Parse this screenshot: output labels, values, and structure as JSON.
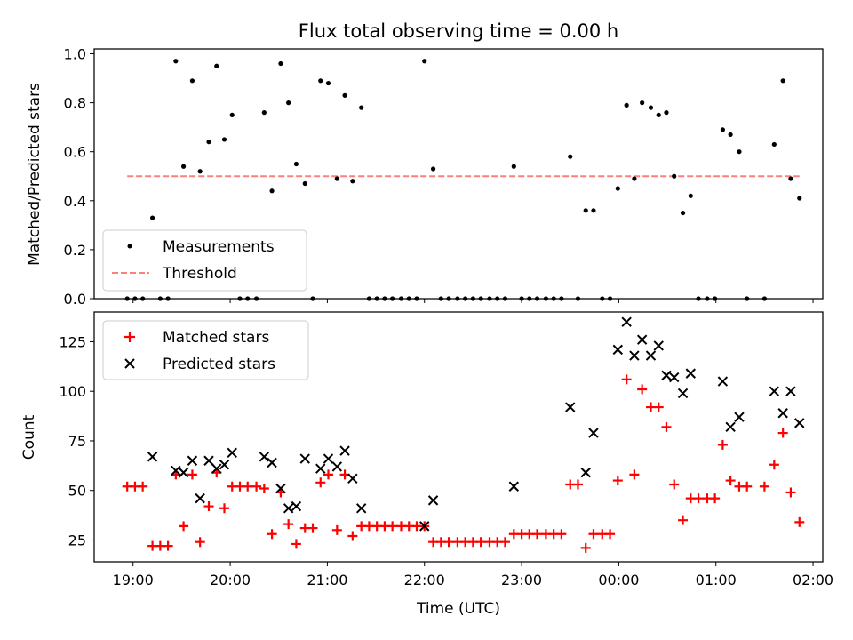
{
  "chart_data": [
    {
      "type": "scatter",
      "title": "Flux total observing time = 0.00 h",
      "xlabel": "",
      "ylabel": "Matched/Predicted stars",
      "x_unit": "hours since 19:00 UTC",
      "xlim": [
        -0.4,
        7.1
      ],
      "ylim": [
        0,
        1.02
      ],
      "yticks": [
        0.0,
        0.2,
        0.4,
        0.6,
        0.8,
        1.0
      ],
      "ytick_labels": [
        "0.0",
        "0.2",
        "0.4",
        "0.6",
        "0.8",
        "1.0"
      ],
      "legend_position": "lower-left",
      "series": [
        {
          "name": "Measurements",
          "color": "#000000",
          "marker": "dot",
          "points": [
            [
              -0.06,
              0
            ],
            [
              0.02,
              0
            ],
            [
              0.1,
              0
            ],
            [
              0.2,
              0.33
            ],
            [
              0.28,
              0
            ],
            [
              0.36,
              0
            ],
            [
              0.44,
              0.97
            ],
            [
              0.52,
              0.54
            ],
            [
              0.61,
              0.89
            ],
            [
              0.69,
              0.52
            ],
            [
              0.78,
              0.64
            ],
            [
              0.86,
              0.95
            ],
            [
              0.94,
              0.65
            ],
            [
              1.02,
              0.75
            ],
            [
              1.1,
              0
            ],
            [
              1.18,
              0
            ],
            [
              1.27,
              0
            ],
            [
              1.35,
              0.76
            ],
            [
              1.43,
              0.44
            ],
            [
              1.52,
              0.96
            ],
            [
              1.6,
              0.8
            ],
            [
              1.68,
              0.55
            ],
            [
              1.77,
              0.47
            ],
            [
              1.85,
              0
            ],
            [
              1.93,
              0.89
            ],
            [
              2.01,
              0.88
            ],
            [
              2.1,
              0.49
            ],
            [
              2.18,
              0.83
            ],
            [
              2.26,
              0.48
            ],
            [
              2.35,
              0.78
            ],
            [
              2.43,
              0
            ],
            [
              2.51,
              0
            ],
            [
              2.59,
              0
            ],
            [
              2.67,
              0
            ],
            [
              2.76,
              0
            ],
            [
              2.84,
              0
            ],
            [
              2.92,
              0
            ],
            [
              3.0,
              0.97
            ],
            [
              3.09,
              0.53
            ],
            [
              3.17,
              0
            ],
            [
              3.25,
              0
            ],
            [
              3.34,
              0
            ],
            [
              3.42,
              0
            ],
            [
              3.5,
              0
            ],
            [
              3.58,
              0
            ],
            [
              3.67,
              0
            ],
            [
              3.75,
              0
            ],
            [
              3.83,
              0
            ],
            [
              3.92,
              0.54
            ],
            [
              4.0,
              0
            ],
            [
              4.08,
              0
            ],
            [
              4.16,
              0
            ],
            [
              4.25,
              0
            ],
            [
              4.33,
              0
            ],
            [
              4.41,
              0
            ],
            [
              4.5,
              0.58
            ],
            [
              4.58,
              0
            ],
            [
              4.66,
              0.36
            ],
            [
              4.74,
              0.36
            ],
            [
              4.83,
              0
            ],
            [
              4.91,
              0
            ],
            [
              4.99,
              0.45
            ],
            [
              5.08,
              0.79
            ],
            [
              5.16,
              0.49
            ],
            [
              5.24,
              0.8
            ],
            [
              5.33,
              0.78
            ],
            [
              5.41,
              0.75
            ],
            [
              5.49,
              0.76
            ],
            [
              5.57,
              0.5
            ],
            [
              5.66,
              0.35
            ],
            [
              5.74,
              0.42
            ],
            [
              5.82,
              0
            ],
            [
              5.91,
              0
            ],
            [
              5.99,
              0
            ],
            [
              6.07,
              0.69
            ],
            [
              6.15,
              0.67
            ],
            [
              6.24,
              0.6
            ],
            [
              6.32,
              0
            ],
            [
              6.5,
              0
            ],
            [
              6.6,
              0.63
            ],
            [
              6.69,
              0.89
            ],
            [
              6.77,
              0.49
            ],
            [
              6.86,
              0.41
            ]
          ]
        },
        {
          "name": "Threshold",
          "color": "#ff7f7f",
          "line_style": "dashed",
          "points": [
            [
              -0.06,
              0.5
            ],
            [
              6.86,
              0.5
            ]
          ]
        }
      ]
    },
    {
      "type": "scatter",
      "title": "",
      "xlabel": "Time (UTC)",
      "ylabel": "Count",
      "x_unit": "hours since 19:00 UTC",
      "xlim": [
        -0.4,
        7.1
      ],
      "ylim": [
        14,
        140
      ],
      "xticks": [
        0,
        1,
        2,
        3,
        4,
        5,
        6,
        7
      ],
      "xtick_labels": [
        "19:00",
        "20:00",
        "21:00",
        "22:00",
        "23:00",
        "00:00",
        "01:00",
        "02:00"
      ],
      "yticks": [
        25,
        50,
        75,
        100,
        125
      ],
      "ytick_labels": [
        "25",
        "50",
        "75",
        "100",
        "125"
      ],
      "legend_position": "upper-left",
      "series": [
        {
          "name": "Matched stars",
          "color": "#ff0000",
          "marker": "plus",
          "points": [
            [
              -0.06,
              52
            ],
            [
              0.02,
              52
            ],
            [
              0.1,
              52
            ],
            [
              0.2,
              22
            ],
            [
              0.28,
              22
            ],
            [
              0.36,
              22
            ],
            [
              0.44,
              58
            ],
            [
              0.52,
              32
            ],
            [
              0.61,
              58
            ],
            [
              0.69,
              24
            ],
            [
              0.78,
              42
            ],
            [
              0.86,
              59
            ],
            [
              0.94,
              41
            ],
            [
              1.02,
              52
            ],
            [
              1.1,
              52
            ],
            [
              1.18,
              52
            ],
            [
              1.27,
              52
            ],
            [
              1.35,
              51
            ],
            [
              1.43,
              28
            ],
            [
              1.52,
              49
            ],
            [
              1.6,
              33
            ],
            [
              1.68,
              23
            ],
            [
              1.77,
              31
            ],
            [
              1.85,
              31
            ],
            [
              1.93,
              54
            ],
            [
              2.01,
              58
            ],
            [
              2.1,
              30
            ],
            [
              2.18,
              58
            ],
            [
              2.26,
              27
            ],
            [
              2.35,
              32
            ],
            [
              2.43,
              32
            ],
            [
              2.51,
              32
            ],
            [
              2.59,
              32
            ],
            [
              2.67,
              32
            ],
            [
              2.76,
              32
            ],
            [
              2.84,
              32
            ],
            [
              2.92,
              32
            ],
            [
              3.0,
              32
            ],
            [
              3.09,
              24
            ],
            [
              3.17,
              24
            ],
            [
              3.25,
              24
            ],
            [
              3.34,
              24
            ],
            [
              3.42,
              24
            ],
            [
              3.5,
              24
            ],
            [
              3.58,
              24
            ],
            [
              3.67,
              24
            ],
            [
              3.75,
              24
            ],
            [
              3.83,
              24
            ],
            [
              3.92,
              28
            ],
            [
              4.0,
              28
            ],
            [
              4.08,
              28
            ],
            [
              4.16,
              28
            ],
            [
              4.25,
              28
            ],
            [
              4.33,
              28
            ],
            [
              4.41,
              28
            ],
            [
              4.5,
              53
            ],
            [
              4.58,
              53
            ],
            [
              4.66,
              21
            ],
            [
              4.74,
              28
            ],
            [
              4.83,
              28
            ],
            [
              4.91,
              28
            ],
            [
              4.99,
              55
            ],
            [
              5.08,
              106
            ],
            [
              5.16,
              58
            ],
            [
              5.24,
              101
            ],
            [
              5.33,
              92
            ],
            [
              5.41,
              92
            ],
            [
              5.49,
              82
            ],
            [
              5.57,
              53
            ],
            [
              5.66,
              35
            ],
            [
              5.74,
              46
            ],
            [
              5.82,
              46
            ],
            [
              5.91,
              46
            ],
            [
              5.99,
              46
            ],
            [
              6.07,
              73
            ],
            [
              6.15,
              55
            ],
            [
              6.24,
              52
            ],
            [
              6.32,
              52
            ],
            [
              6.5,
              52
            ],
            [
              6.6,
              63
            ],
            [
              6.69,
              79
            ],
            [
              6.77,
              49
            ],
            [
              6.86,
              34
            ]
          ]
        },
        {
          "name": "Predicted stars",
          "color": "#000000",
          "marker": "x",
          "points": [
            [
              0.2,
              67
            ],
            [
              0.44,
              60
            ],
            [
              0.52,
              59
            ],
            [
              0.61,
              65
            ],
            [
              0.69,
              46
            ],
            [
              0.78,
              65
            ],
            [
              0.86,
              61
            ],
            [
              0.94,
              63
            ],
            [
              1.02,
              69
            ],
            [
              1.35,
              67
            ],
            [
              1.43,
              64
            ],
            [
              1.52,
              51
            ],
            [
              1.6,
              41
            ],
            [
              1.68,
              42
            ],
            [
              1.77,
              66
            ],
            [
              1.93,
              61
            ],
            [
              2.01,
              66
            ],
            [
              2.1,
              62
            ],
            [
              2.18,
              70
            ],
            [
              2.26,
              56
            ],
            [
              2.35,
              41
            ],
            [
              3.0,
              32
            ],
            [
              3.09,
              45
            ],
            [
              3.92,
              52
            ],
            [
              4.5,
              92
            ],
            [
              4.66,
              59
            ],
            [
              4.74,
              79
            ],
            [
              4.99,
              121
            ],
            [
              5.08,
              135
            ],
            [
              5.16,
              118
            ],
            [
              5.24,
              126
            ],
            [
              5.33,
              118
            ],
            [
              5.41,
              123
            ],
            [
              5.49,
              108
            ],
            [
              5.57,
              107
            ],
            [
              5.66,
              99
            ],
            [
              5.74,
              109
            ],
            [
              6.07,
              105
            ],
            [
              6.15,
              82
            ],
            [
              6.24,
              87
            ],
            [
              6.6,
              100
            ],
            [
              6.69,
              89
            ],
            [
              6.77,
              100
            ],
            [
              6.86,
              84
            ]
          ]
        }
      ]
    }
  ]
}
